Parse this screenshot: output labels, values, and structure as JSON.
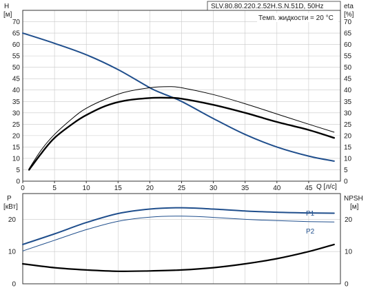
{
  "chart_data": [
    {
      "type": "line",
      "title": "SLV.80.80.220.2.52H.S.N.51D, 50Hz",
      "annotation": "Темп. жидкости = 20 °C",
      "xlabel": "Q [л/с]",
      "xlim": [
        0,
        50
      ],
      "xticks": [
        0,
        5,
        10,
        15,
        20,
        25,
        30,
        35,
        40,
        45
      ],
      "ylabel_left": [
        "H",
        "[м]"
      ],
      "ylabel_right": [
        "eta",
        "[%]"
      ],
      "ylim": [
        0,
        75
      ],
      "yticks": [
        0,
        5,
        10,
        15,
        20,
        25,
        30,
        35,
        40,
        45,
        50,
        55,
        60,
        65,
        70
      ],
      "grid": true,
      "series": [
        {
          "key": "H",
          "color": "#1f4e8c",
          "width": 2,
          "x": [
            0,
            5,
            10,
            15,
            20,
            22,
            25,
            30,
            35,
            40,
            45,
            49
          ],
          "y": [
            65,
            60.5,
            55.5,
            49,
            41,
            38.5,
            35,
            27.5,
            20.5,
            15,
            11,
            8.8
          ]
        },
        {
          "key": "eta",
          "color": "#000000",
          "width": 1,
          "x": [
            1,
            3,
            5,
            8,
            10,
            13,
            16,
            20,
            23,
            25,
            30,
            35,
            40,
            45,
            49
          ],
          "y": [
            5.5,
            14,
            20.5,
            28,
            32,
            36,
            39,
            41,
            41.5,
            41,
            38,
            34,
            29.5,
            25,
            21.5
          ]
        },
        {
          "key": "eta_p",
          "color": "#000000",
          "width": 2.4,
          "x": [
            1,
            3,
            5,
            8,
            10,
            13,
            16,
            20,
            23,
            25,
            30,
            35,
            40,
            45,
            49
          ],
          "y": [
            5,
            12.5,
            19,
            25.5,
            29,
            33,
            35.3,
            36.5,
            36.6,
            36.2,
            33.5,
            30,
            26,
            22.5,
            19
          ]
        }
      ]
    },
    {
      "type": "line",
      "xlim": [
        0,
        50
      ],
      "ylabel_left": [
        "P",
        "[кВт]"
      ],
      "ylabel_right": [
        "NPSH",
        "[м]"
      ],
      "ylim": [
        0,
        28
      ],
      "yticks": [
        0,
        10,
        20
      ],
      "grid": true,
      "series": [
        {
          "name": "P1",
          "color": "#1f4e8c",
          "width": 2,
          "x": [
            0,
            5,
            10,
            15,
            20,
            25,
            30,
            35,
            40,
            45,
            49
          ],
          "y": [
            12.2,
            15.5,
            19,
            21.8,
            23.2,
            23.6,
            23.2,
            22.6,
            22.2,
            22,
            21.9
          ]
        },
        {
          "name": "P2",
          "color": "#1f4e8c",
          "width": 1,
          "x": [
            0,
            5,
            10,
            15,
            20,
            25,
            30,
            35,
            40,
            45,
            49
          ],
          "y": [
            10.2,
            13.5,
            16.8,
            19.4,
            20.7,
            21,
            20.6,
            20,
            19.6,
            19.3,
            19.2
          ]
        },
        {
          "key": "NPSH",
          "color": "#000000",
          "width": 2.2,
          "x": [
            0,
            5,
            10,
            15,
            20,
            25,
            30,
            35,
            40,
            45,
            49
          ],
          "y": [
            6.2,
            5,
            4.3,
            3.9,
            4,
            4.3,
            5,
            6.2,
            7.8,
            10,
            12.2
          ]
        }
      ]
    }
  ]
}
